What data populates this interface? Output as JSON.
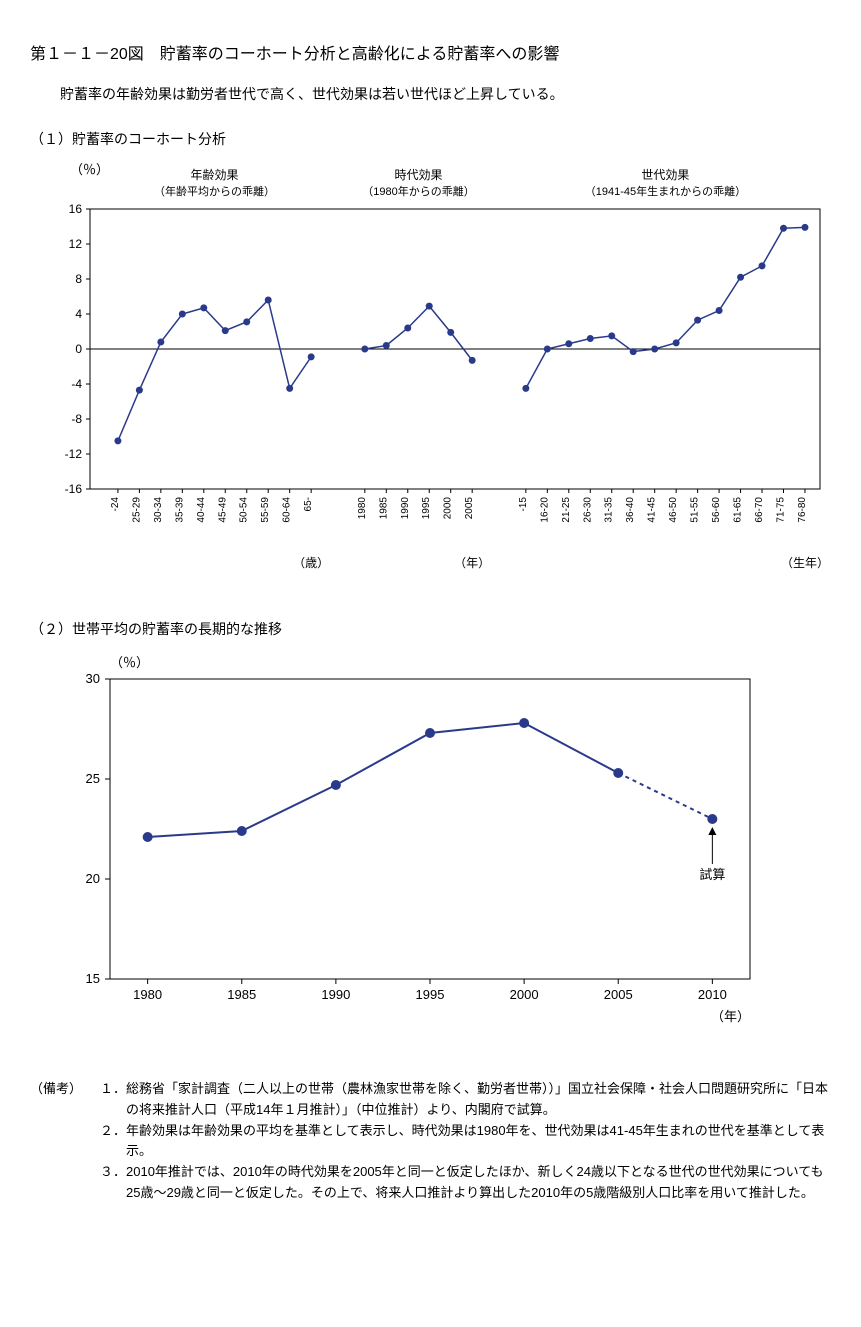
{
  "title": "第１－１－20図　貯蓄率のコーホート分析と高齢化による貯蓄率への影響",
  "subtitle": "貯蓄率の年齢効果は勤労者世代で高く、世代効果は若い世代ほど上昇している。",
  "section1": {
    "title": "（１）貯蓄率のコーホート分析",
    "y_unit": "（％）",
    "ylim": [
      -16,
      16
    ],
    "ytick_step": 4,
    "line_color": "#2a3a8a",
    "marker_color": "#2a3a8a",
    "grid_color": "#000000",
    "background_color": "#ffffff",
    "panels": [
      {
        "label_line1": "年齢効果",
        "label_line2": "（年齢平均からの乖離）",
        "x_axis_unit": "（歳）",
        "categories": [
          "-24",
          "25-29",
          "30-34",
          "35-39",
          "40-44",
          "45-49",
          "50-54",
          "55-59",
          "60-64",
          "65-"
        ],
        "values": [
          -10.5,
          -4.7,
          0.8,
          4.0,
          4.7,
          2.1,
          3.1,
          5.6,
          -4.5,
          -0.9
        ]
      },
      {
        "label_line1": "時代効果",
        "label_line2": "（1980年からの乖離）",
        "x_axis_unit": "（年）",
        "categories": [
          "1980",
          "1985",
          "1990",
          "1995",
          "2000",
          "2005"
        ],
        "values": [
          0.0,
          0.4,
          2.4,
          4.9,
          1.9,
          -1.3
        ]
      },
      {
        "label_line1": "世代効果",
        "label_line2": "（1941-45年生まれからの乖離）",
        "x_axis_unit": "（生年）",
        "categories": [
          "-15",
          "16-20",
          "21-25",
          "26-30",
          "31-35",
          "36-40",
          "41-45",
          "46-50",
          "51-55",
          "56-60",
          "61-65",
          "66-70",
          "71-75",
          "76-80"
        ],
        "values": [
          -4.5,
          0.0,
          0.6,
          1.2,
          1.5,
          -0.3,
          0.0,
          0.7,
          3.3,
          4.4,
          8.2,
          9.5,
          13.8,
          13.9
        ]
      }
    ]
  },
  "section2": {
    "title": "（２）世帯平均の貯蓄率の長期的な推移",
    "y_unit": "（％）",
    "x_unit": "（年）",
    "ylim": [
      15,
      30
    ],
    "ytick_step": 5,
    "xlim": [
      1978,
      2012
    ],
    "line_color": "#2a3a8a",
    "marker_color": "#2a3a8a",
    "grid_color": "#000000",
    "background_color": "#ffffff",
    "annotation": "試算",
    "x": [
      1980,
      1985,
      1990,
      1995,
      2000,
      2005,
      2010
    ],
    "y": [
      22.1,
      22.4,
      24.7,
      27.3,
      27.8,
      25.3,
      23.0
    ],
    "dashed_from_index": 5
  },
  "notes": {
    "label": "（備考）",
    "items": [
      {
        "num": "１．",
        "text": "総務省「家計調査（二人以上の世帯（農林漁家世帯を除く、勤労者世帯））」国立社会保障・社会人口問題研究所に「日本の将来推計人口（平成14年１月推計）」（中位推計）より、内閣府で試算。"
      },
      {
        "num": "２．",
        "text": "年齢効果は年齢効果の平均を基準として表示し、時代効果は1980年を、世代効果は41-45年生まれの世代を基準として表示。"
      },
      {
        "num": "３．",
        "text": "2010年推計では、2010年の時代効果を2005年と同一と仮定したほか、新しく24歳以下となる世代の世代効果についても25歳～29歳と同一と仮定した。その上で、将来人口推計より算出した2010年の5歳階級別人口比率を用いて推計した。"
      }
    ]
  }
}
